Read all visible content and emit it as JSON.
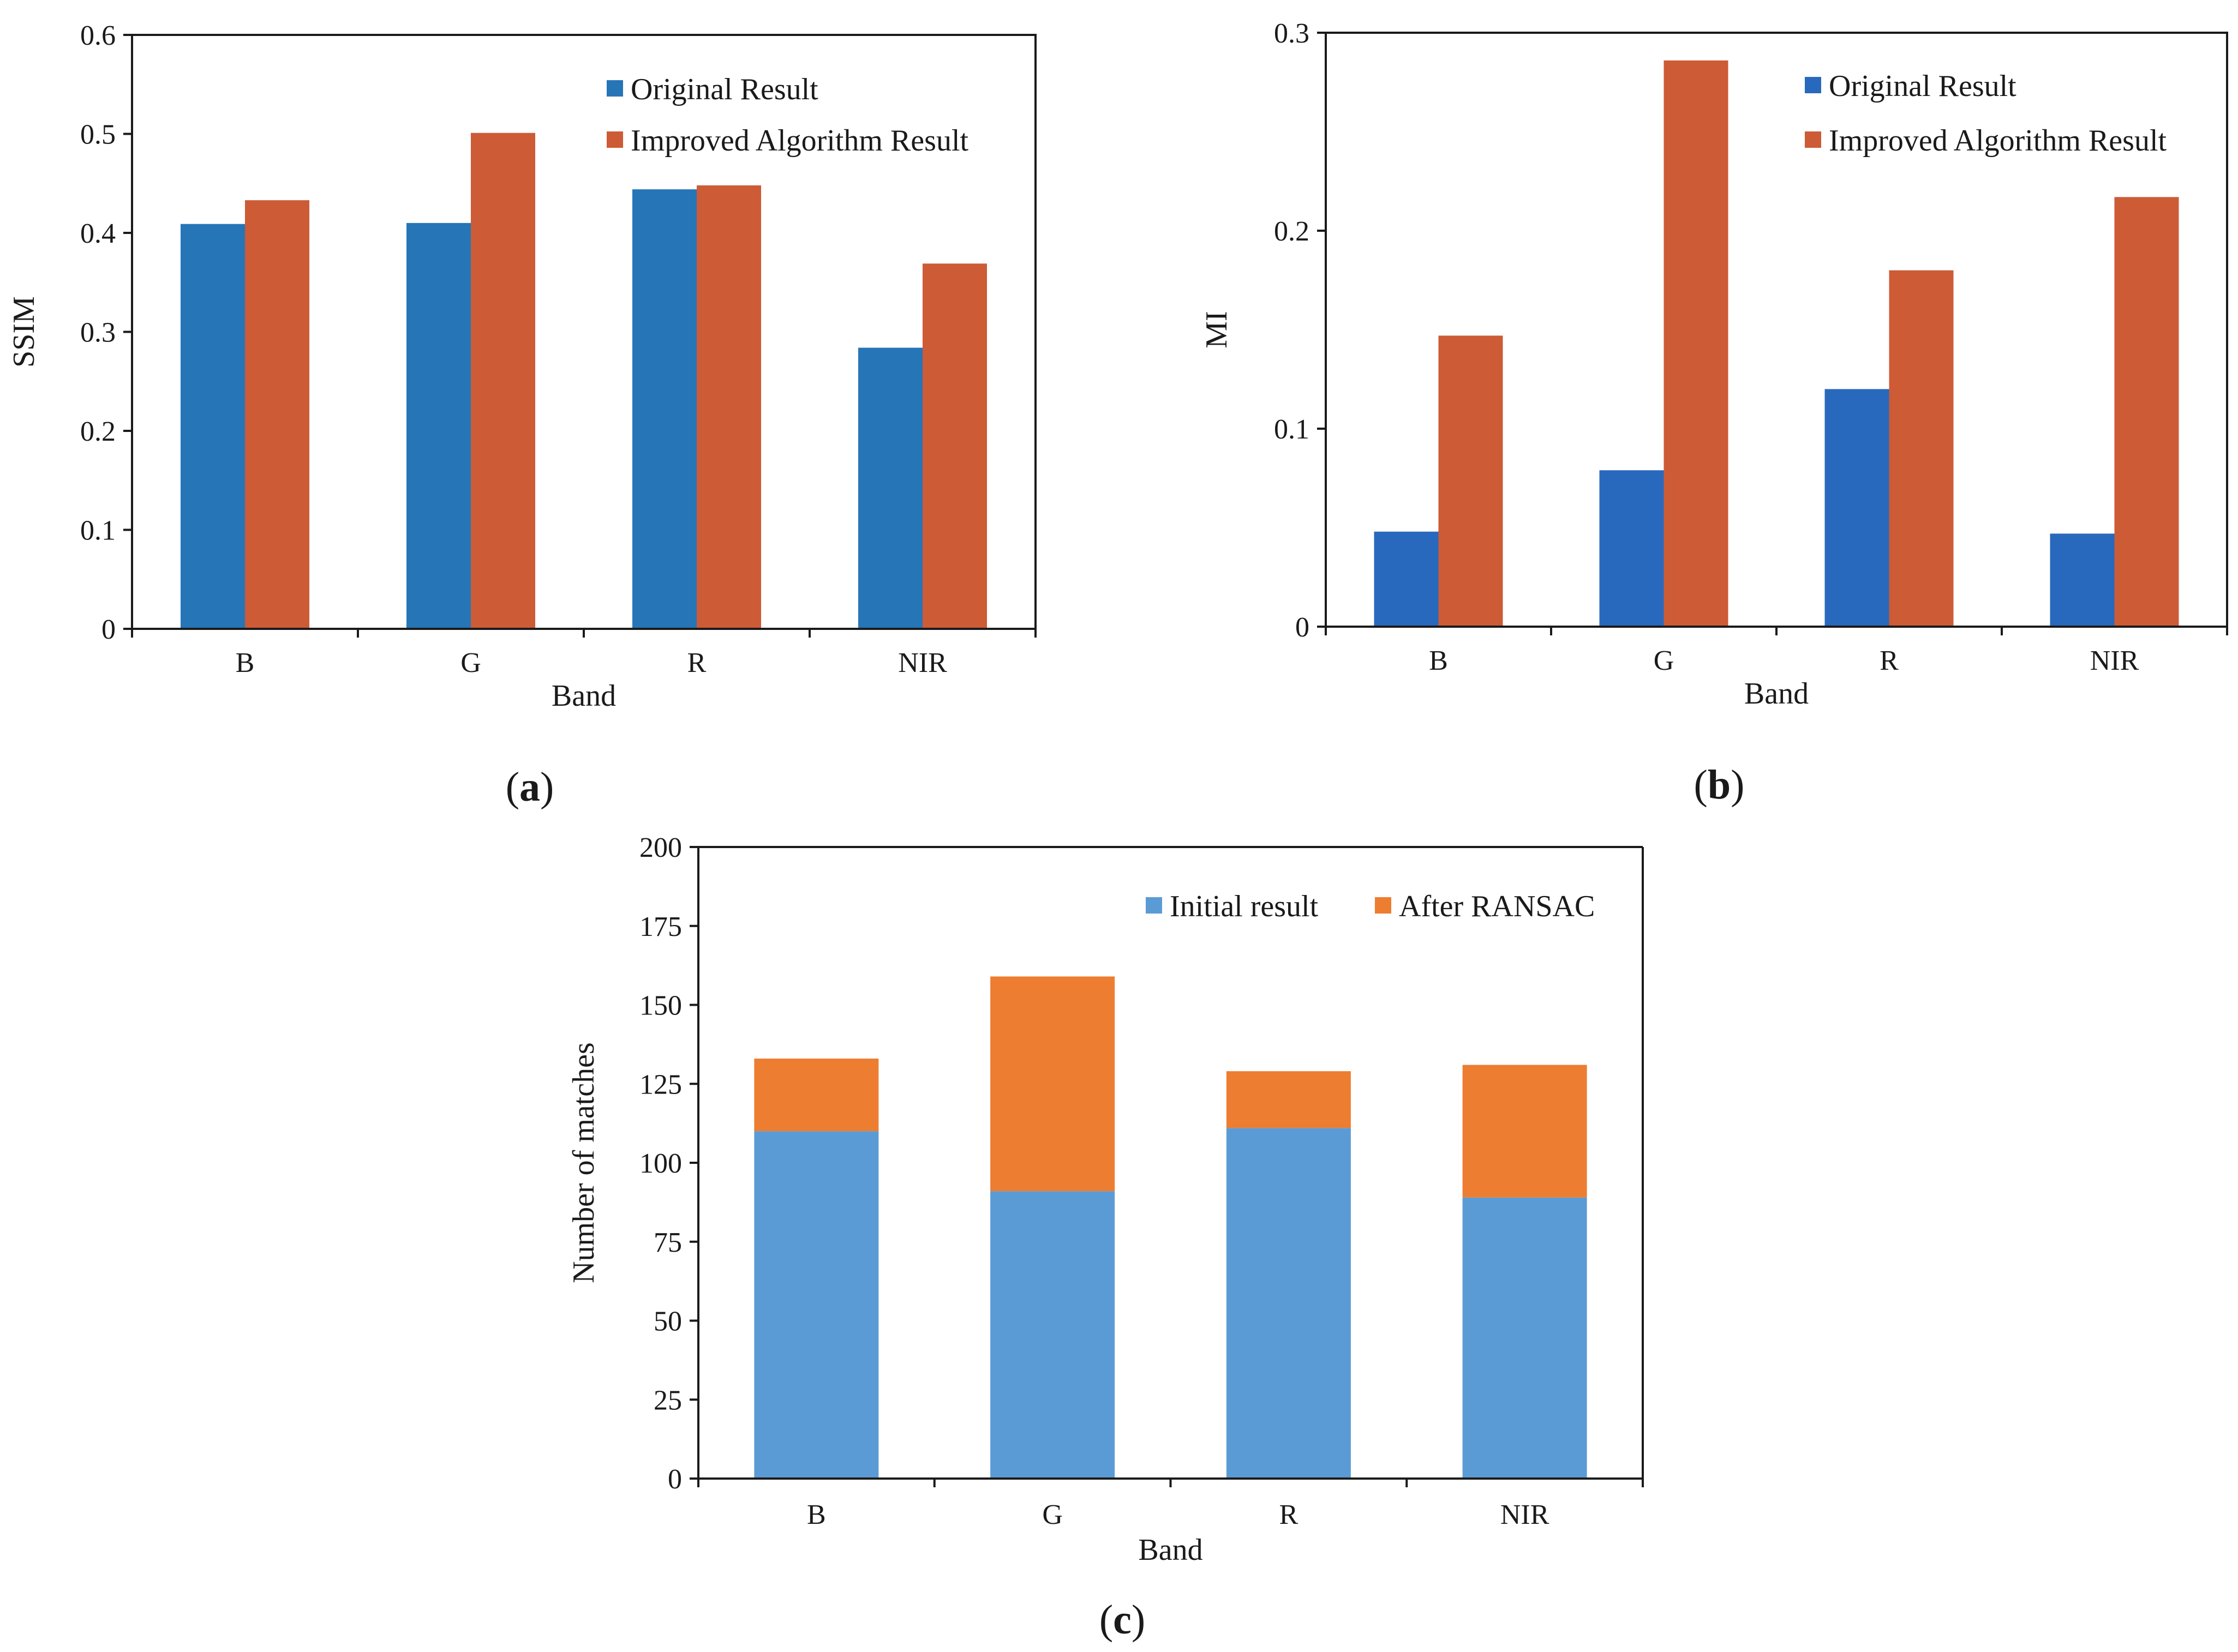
{
  "chart_data": [
    {
      "id": "a",
      "type": "bar",
      "caption": "a",
      "categories": [
        "B",
        "G",
        "R",
        "NIR"
      ],
      "series": [
        {
          "name": "Original Result",
          "values": [
            0.409,
            0.41,
            0.444,
            0.284
          ]
        },
        {
          "name": "Improved Algorithm Result",
          "values": [
            0.433,
            0.501,
            0.448,
            0.369
          ]
        }
      ],
      "xlabel": "Band",
      "ylabel": "SSIM",
      "ylim": [
        0,
        0.6
      ],
      "yticks": [
        "0",
        "0.1",
        "0.2",
        "0.3",
        "0.4",
        "0.5",
        "0.6"
      ],
      "grid": false,
      "legend": "top-right",
      "colors": [
        "#2675B7",
        "#CC5B36"
      ]
    },
    {
      "id": "b",
      "type": "bar",
      "caption": "b",
      "categories": [
        "B",
        "G",
        "R",
        "NIR"
      ],
      "series": [
        {
          "name": "Original Result",
          "values": [
            0.048,
            0.079,
            0.12,
            0.047
          ]
        },
        {
          "name": "Improved Algorithm Result",
          "values": [
            0.147,
            0.286,
            0.18,
            0.217
          ]
        }
      ],
      "xlabel": "Band",
      "ylabel": "MI",
      "ylim": [
        0,
        0.3
      ],
      "yticks": [
        "0",
        "0.1",
        "0.2",
        "0.3"
      ],
      "grid": false,
      "legend": "top-right",
      "colors": [
        "#2969BD",
        "#CC5B36"
      ]
    },
    {
      "id": "c",
      "type": "bar",
      "stacked": true,
      "caption": "c",
      "categories": [
        "B",
        "G",
        "R",
        "NIR"
      ],
      "series": [
        {
          "name": "Initial result",
          "values": [
            110,
            91,
            111,
            89
          ]
        },
        {
          "name": "After RANSAC",
          "values": [
            23,
            68,
            18,
            42
          ]
        }
      ],
      "xlabel": "Band",
      "ylabel": "Number of matches",
      "ylim": [
        0,
        200
      ],
      "yticks": [
        "0",
        "25",
        "50",
        "75",
        "100",
        "125",
        "150",
        "175",
        "200"
      ],
      "grid": false,
      "legend": "top-right",
      "colors": [
        "#5B9BD5",
        "#ED7D31"
      ]
    }
  ]
}
